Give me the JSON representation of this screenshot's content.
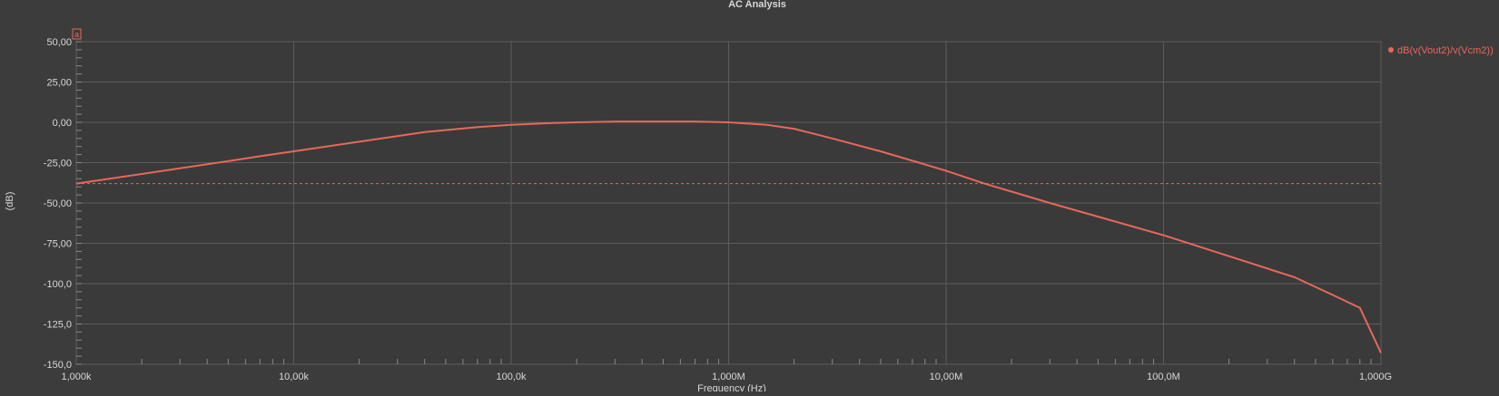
{
  "colors": {
    "background": "#3c3c3c",
    "plot_area": "#3a3a3a",
    "grid": "#5c5c5c",
    "axis": "#8a8a8a",
    "text": "#d8d8d8",
    "trace": "#e8685a"
  },
  "chart_data": {
    "type": "line",
    "title": "AC Analysis",
    "xlabel": "Frequency (Hz)",
    "ylabel": "(dB)",
    "x_scale": "log",
    "xlim": [
      1000,
      1000000000
    ],
    "ylim": [
      -150,
      50
    ],
    "grid": true,
    "legend_position": "top-right",
    "x_ticks": [
      {
        "value": 1000,
        "label": "1,000k"
      },
      {
        "value": 10000,
        "label": "10,00k"
      },
      {
        "value": 100000,
        "label": "100,0k"
      },
      {
        "value": 1000000,
        "label": "1,000M"
      },
      {
        "value": 10000000,
        "label": "10,00M"
      },
      {
        "value": 100000000,
        "label": "100,0M"
      },
      {
        "value": 1000000000,
        "label": "1,000G"
      }
    ],
    "y_ticks": [
      {
        "value": 50,
        "label": "50,00"
      },
      {
        "value": 25,
        "label": "25,00"
      },
      {
        "value": 0,
        "label": "0,00"
      },
      {
        "value": -25,
        "label": "-25,00"
      },
      {
        "value": -50,
        "label": "-50,00"
      },
      {
        "value": -75,
        "label": "-75,00"
      },
      {
        "value": -100,
        "label": "-100,0"
      },
      {
        "value": -125,
        "label": "-125,0"
      },
      {
        "value": -150,
        "label": "-150,0"
      }
    ],
    "cursor": {
      "label": "a",
      "y_value": -38
    },
    "series": [
      {
        "name": "dB(v(Vout2)/v(Vcm2))",
        "x": [
          1000,
          2000,
          4000,
          7000,
          10000,
          20000,
          40000,
          70000,
          100000,
          150000,
          200000,
          300000,
          500000,
          700000,
          1000000,
          1500000,
          2000000,
          3000000,
          5000000,
          10000000,
          15000000,
          30000000,
          100000000,
          200000000,
          400000000,
          600000000,
          800000000,
          1000000000
        ],
        "y": [
          -38,
          -32,
          -26,
          -21,
          -18,
          -12,
          -6,
          -3,
          -1.5,
          -0.5,
          0,
          0.5,
          0.5,
          0.5,
          0,
          -1.5,
          -4,
          -10,
          -18,
          -30,
          -38,
          -50,
          -70,
          -83,
          -96,
          -107,
          -115,
          -143
        ]
      }
    ]
  }
}
